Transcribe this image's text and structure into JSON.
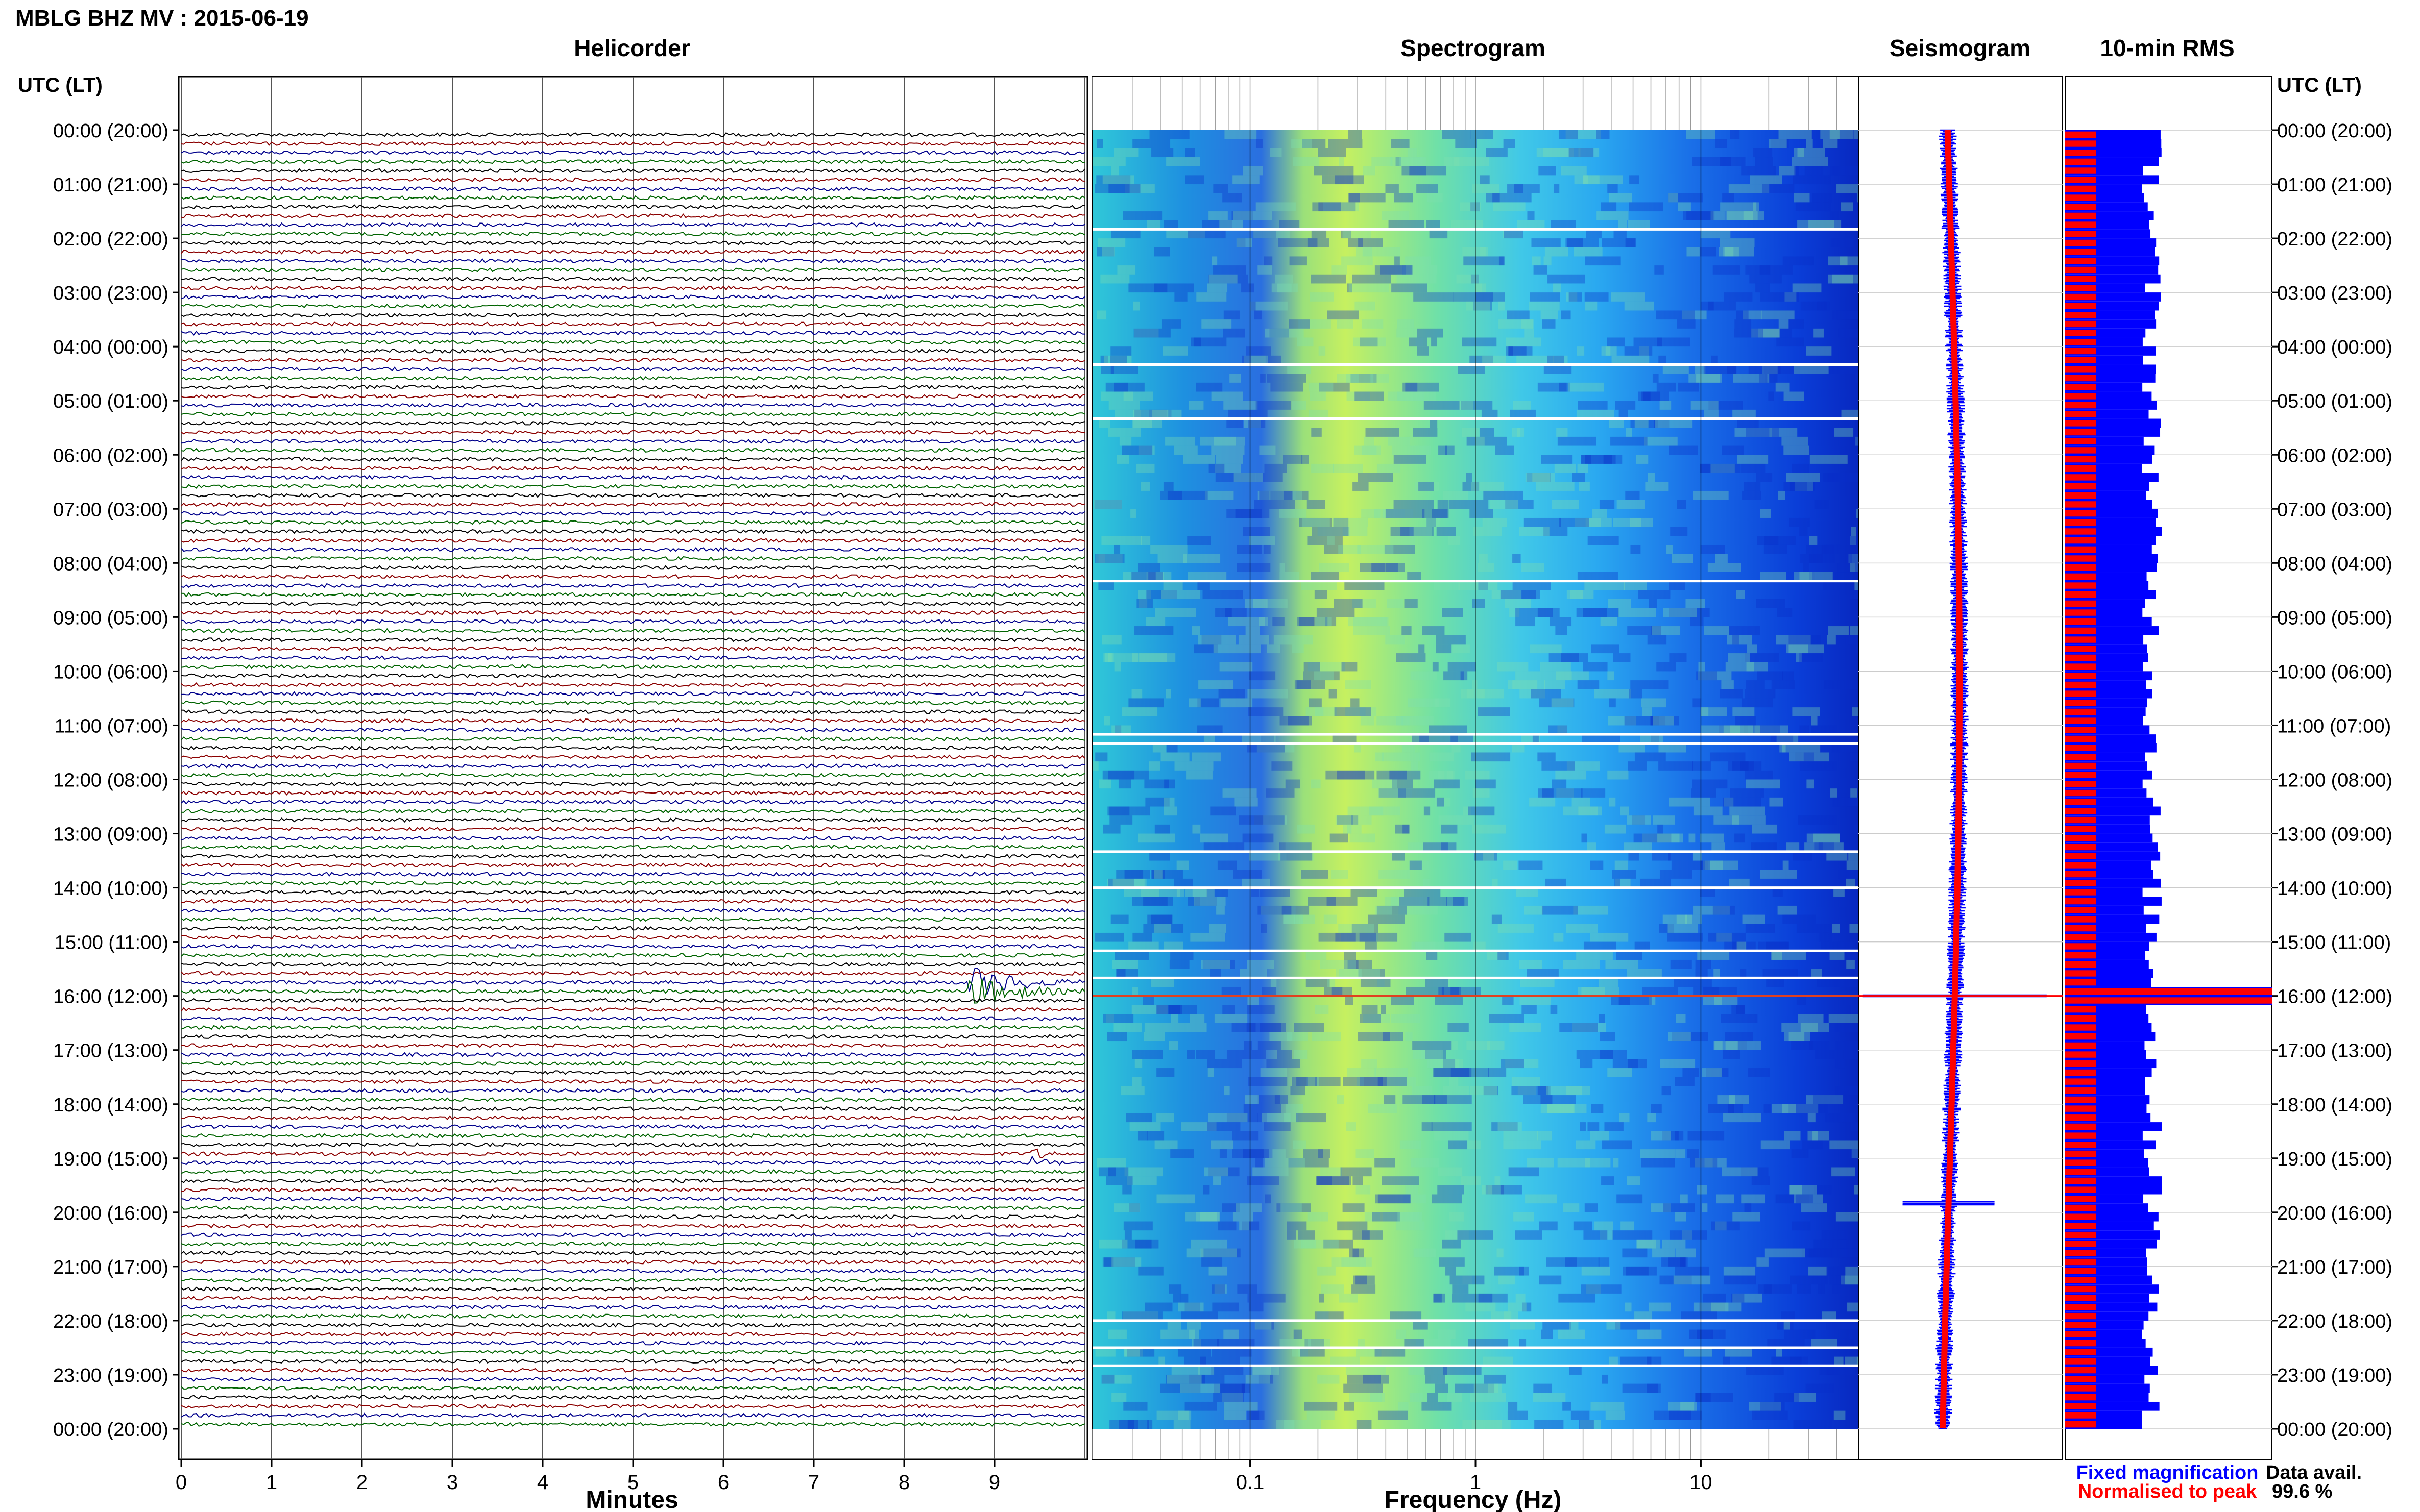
{
  "title": "MBLG BHZ MV : 2015-06-19",
  "panels": {
    "helicorder": "Helicorder",
    "spectrogram": "Spectrogram",
    "seismogram": "Seismogram",
    "rms": "10-min RMS"
  },
  "time_axis_title": "UTC (LT)",
  "x_axis_titles": {
    "helicorder": "Minutes",
    "spectrogram": "Frequency (Hz)"
  },
  "legend": {
    "fixed": "Fixed magnification",
    "normalised": "Normalised to peak"
  },
  "data_availability": {
    "label": "Data avail.",
    "value": "99.6 %"
  },
  "colors": {
    "trace_cycle": [
      "#000000",
      "#8b0000",
      "#00008b",
      "#006400"
    ],
    "fixed": "#0000ff",
    "normalised": "#ff0000",
    "spectrogram_low": "#00008b",
    "spectrogram_high": "#ffff00"
  },
  "chart_data": [
    {
      "type": "line",
      "panel": "Helicorder",
      "xlabel": "Minutes",
      "xlim": [
        0,
        10
      ],
      "xticks": [
        "0",
        "1",
        "2",
        "3",
        "4",
        "5",
        "6",
        "7",
        "8",
        "9"
      ],
      "ylabel": "UTC (LT)",
      "row_count": 144,
      "row_minutes": 10,
      "events": [
        {
          "time": "15:50",
          "minute_start": 8.7,
          "minute_end": 10,
          "relative_amplitude": 10
        },
        {
          "time": "19:00",
          "minute_start": 9.4,
          "minute_end": 10,
          "relative_amplitude": 4
        }
      ]
    },
    {
      "type": "heatmap",
      "panel": "Spectrogram",
      "xlabel": "Frequency (Hz)",
      "xscale": "log",
      "xlim": [
        0.02,
        50
      ],
      "xticks": [
        "0.1",
        "1",
        "10"
      ],
      "peak_band_hz": [
        0.2,
        0.4
      ]
    },
    {
      "type": "line",
      "panel": "Seismogram",
      "event_time": "16:00",
      "minor_event_time": "19:50"
    },
    {
      "type": "bar",
      "panel": "10-min RMS",
      "series": [
        {
          "name": "Fixed magnification",
          "color": "#0000ff"
        },
        {
          "name": "Normalised to peak",
          "color": "#ff0000"
        }
      ],
      "peak_time": "16:00",
      "secondary_peak_time": "19:30"
    }
  ],
  "time_labels": [
    "00:00 (20:00)",
    "01:00 (21:00)",
    "02:00 (22:00)",
    "03:00 (23:00)",
    "04:00 (00:00)",
    "05:00 (01:00)",
    "06:00 (02:00)",
    "07:00 (03:00)",
    "08:00 (04:00)",
    "09:00 (05:00)",
    "10:00 (06:00)",
    "11:00 (07:00)",
    "12:00 (08:00)",
    "13:00 (09:00)",
    "14:00 (10:00)",
    "15:00 (11:00)",
    "16:00 (12:00)",
    "17:00 (13:00)",
    "18:00 (14:00)",
    "19:00 (15:00)",
    "20:00 (16:00)",
    "21:00 (17:00)",
    "22:00 (18:00)",
    "23:00 (19:00)",
    "00:00 (20:00)"
  ]
}
